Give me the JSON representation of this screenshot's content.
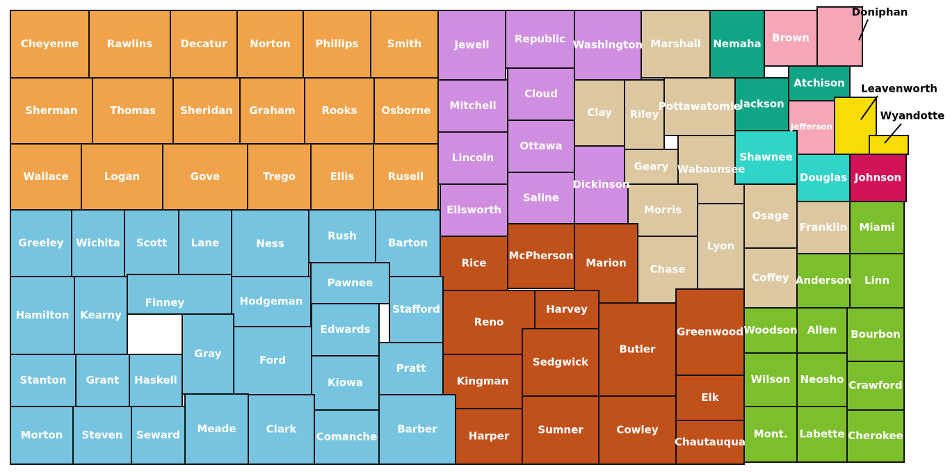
{
  "regions": [
    {
      "color": "#f0a34a",
      "counties": [
        "Cheyenne",
        "Rawlins",
        "Decatur",
        "Norton",
        "Phillips",
        "Smith",
        "Sherman",
        "Thomas",
        "Sheridan",
        "Graham",
        "Rooks",
        "Osborne",
        "Wallace",
        "Logan",
        "Gove",
        "Trego",
        "Ellis",
        "Rusell"
      ]
    },
    {
      "color": "#cf8ee0",
      "counties": [
        "Jewell",
        "Republic",
        "Washington",
        "Mitchell",
        "Cloud",
        "Lincoln",
        "Ottawa",
        "Ellsworth",
        "Saline",
        "Dickinson"
      ]
    },
    {
      "color": "#dcc7a0",
      "counties": [
        "Marshall",
        "Clay",
        "Riley",
        "Pottawatomie",
        "Geary",
        "Wabaunsee",
        "Morris",
        "Chase",
        "Lyon",
        "Osage",
        "Coffey",
        "Franklin"
      ]
    },
    {
      "color": "#0fa585",
      "counties": [
        "Nemaha",
        "Jackson",
        "Atchison"
      ]
    },
    {
      "color": "#f6a6b7",
      "counties": [
        "Brown",
        "Doniphan",
        "Jefferson"
      ]
    },
    {
      "color": "#f7dc06",
      "counties": [
        "Leavenworth",
        "Wyandotte"
      ]
    },
    {
      "color": "#30d4c9",
      "counties": [
        "Shawnee",
        "Douglas"
      ]
    },
    {
      "color": "#d2135a",
      "counties": [
        "Johnson"
      ]
    },
    {
      "color": "#7cbf2d",
      "counties": [
        "Miami",
        "Anderson",
        "Linn",
        "Woodson",
        "Allen",
        "Bourbon",
        "Wilson",
        "Neosho",
        "Crawford",
        "Mont.",
        "Labette",
        "Cherokee"
      ]
    },
    {
      "color": "#c0511b",
      "counties": [
        "Rice",
        "McPherson",
        "Marion",
        "Reno",
        "Harvey",
        "Kingman",
        "Sedgwick",
        "Butler",
        "Greenwood",
        "Harper",
        "Sumner",
        "Cowley",
        "Elk",
        "Chautauqua"
      ]
    },
    {
      "color": "#77c4e0",
      "counties": [
        "Greeley",
        "Wichita",
        "Scott",
        "Lane",
        "Ness",
        "Rush",
        "Barton",
        "Hamilton",
        "Kearny",
        "Finney",
        "Hodgeman",
        "Pawnee",
        "Stafford",
        "Gray",
        "Ford",
        "Edwards",
        "Stanton",
        "Grant",
        "Haskell",
        "Kiowa",
        "Pratt",
        "Morton",
        "Steven",
        "Seward",
        "Meade",
        "Clark",
        "Comanche",
        "Barber"
      ]
    }
  ]
}
